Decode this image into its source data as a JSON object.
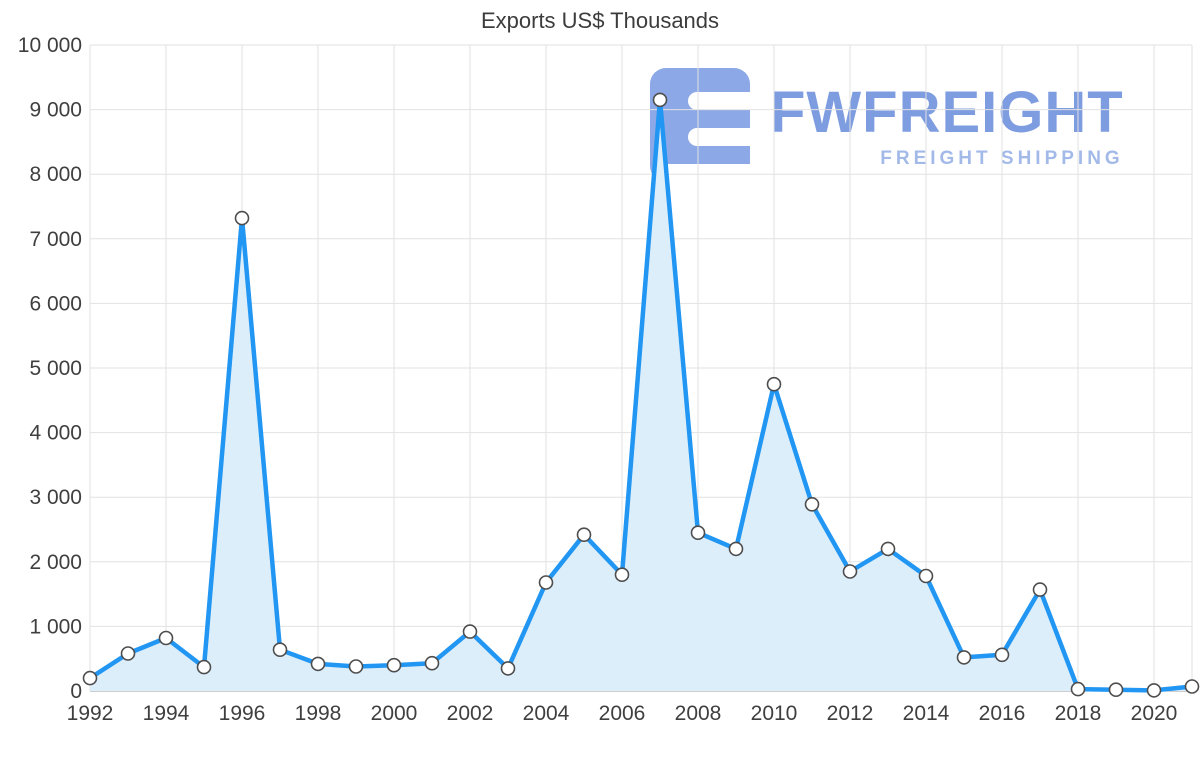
{
  "chart_data": {
    "type": "area",
    "title": "Exports US$ Thousands",
    "xlabel": "",
    "ylabel": "",
    "ylim": [
      0,
      10000
    ],
    "grid": true,
    "legend": "none",
    "x": [
      1992,
      1993,
      1994,
      1995,
      1996,
      1997,
      1998,
      1999,
      2000,
      2001,
      2002,
      2003,
      2004,
      2005,
      2006,
      2007,
      2008,
      2009,
      2010,
      2011,
      2012,
      2013,
      2014,
      2015,
      2016,
      2017,
      2018,
      2019,
      2020,
      2021
    ],
    "values": [
      200,
      580,
      820,
      370,
      7320,
      640,
      420,
      380,
      400,
      430,
      920,
      350,
      1680,
      2420,
      1800,
      9150,
      2450,
      2200,
      4750,
      2890,
      1850,
      2200,
      1780,
      520,
      560,
      1570,
      30,
      20,
      10,
      70
    ],
    "y_ticks": [
      0,
      1000,
      2000,
      3000,
      4000,
      5000,
      6000,
      7000,
      8000,
      9000,
      10000
    ],
    "y_tick_labels": [
      "0",
      "1 000",
      "2 000",
      "3 000",
      "4 000",
      "5 000",
      "6 000",
      "7 000",
      "8 000",
      "9 000",
      "10 000"
    ],
    "x_ticks": [
      1992,
      1994,
      1996,
      1998,
      2000,
      2002,
      2004,
      2006,
      2008,
      2010,
      2012,
      2014,
      2016,
      2018,
      2020
    ],
    "colors": {
      "line": "#2196f3",
      "area_fill": "#ddeefb",
      "marker_fill": "#ffffff",
      "marker_stroke": "#4d4d4d",
      "grid": "#e2e2e2",
      "axis": "#9e9e9e",
      "tick_label": "#3f3f3f"
    }
  },
  "watermark": {
    "brand": "FWFREIGHT",
    "tagline": "FREIGHT SHIPPING",
    "logo_color": "#7d9de4"
  }
}
